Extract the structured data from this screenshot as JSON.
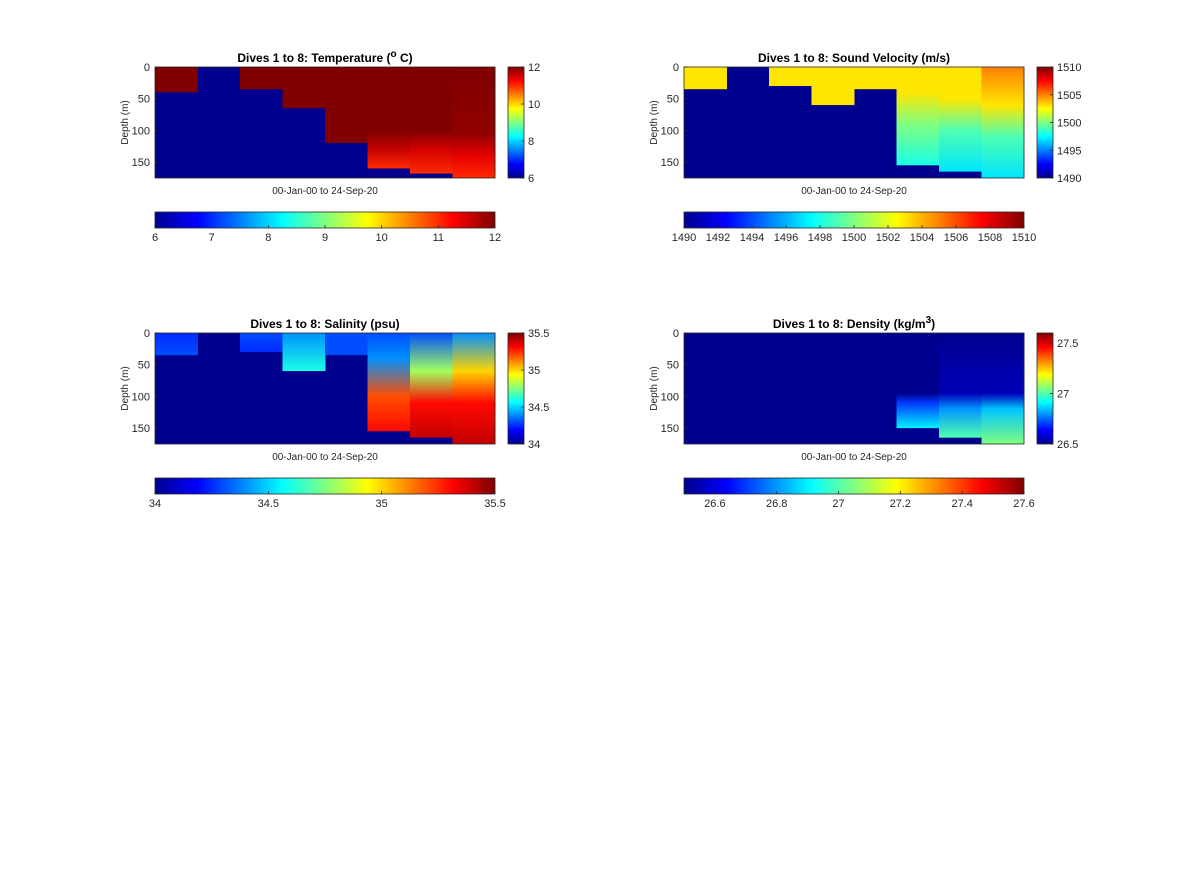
{
  "colormap": [
    "#00008f",
    "#0000ff",
    "#0080ff",
    "#00ffff",
    "#80ff80",
    "#ffff00",
    "#ff8000",
    "#ff0000",
    "#800000"
  ],
  "chart_data": [
    {
      "type": "heatmap",
      "title_main": "Dives 1 to 8: Temperature (",
      "title_sup": "o",
      "title_tail": " C)",
      "xlabel": "00-Jan-00 to 24-Sep-20",
      "ylabel": "Depth (m)",
      "ylim": [
        0,
        175
      ],
      "y_ticks": [
        "0",
        "50",
        "100",
        "150"
      ],
      "clim": [
        6,
        12
      ],
      "side_ticks": [
        "12",
        "10",
        "8",
        "6"
      ],
      "bottom_ticks": [
        "6",
        "7",
        "8",
        "9",
        "10",
        "11",
        "12"
      ],
      "columns": [
        {
          "depth": 40,
          "profile": [
            [
              0,
              12
            ],
            [
              40,
              12
            ]
          ]
        },
        {
          "depth": 0,
          "profile": []
        },
        {
          "depth": 35,
          "profile": [
            [
              0,
              12
            ],
            [
              35,
              12
            ]
          ]
        },
        {
          "depth": 65,
          "profile": [
            [
              0,
              12
            ],
            [
              65,
              12
            ]
          ]
        },
        {
          "depth": 120,
          "profile": [
            [
              0,
              12
            ],
            [
              120,
              12
            ]
          ]
        },
        {
          "depth": 160,
          "profile": [
            [
              0,
              12
            ],
            [
              100,
              12
            ],
            [
              130,
              11.6
            ],
            [
              160,
              11
            ]
          ]
        },
        {
          "depth": 168,
          "profile": [
            [
              0,
              12
            ],
            [
              100,
              12
            ],
            [
              130,
              11.5
            ],
            [
              168,
              11
            ]
          ]
        },
        {
          "depth": 175,
          "profile": [
            [
              0,
              12
            ],
            [
              105,
              11.9
            ],
            [
              140,
              11.4
            ],
            [
              175,
              11
            ]
          ]
        }
      ]
    },
    {
      "type": "heatmap",
      "title_main": "Dives 1 to 8: Sound Velocity (m/s)",
      "title_sup": "",
      "title_tail": "",
      "xlabel": "00-Jan-00 to 24-Sep-20",
      "ylabel": "Depth (m)",
      "ylim": [
        0,
        175
      ],
      "y_ticks": [
        "0",
        "50",
        "100",
        "150"
      ],
      "clim": [
        1490,
        1510
      ],
      "side_ticks": [
        "1510",
        "1505",
        "1500",
        "1495",
        "1490"
      ],
      "bottom_ticks": [
        "1490",
        "1492",
        "1494",
        "1496",
        "1498",
        "1500",
        "1502",
        "1504",
        "1506",
        "1508",
        "1510"
      ],
      "columns": [
        {
          "depth": 35,
          "profile": [
            [
              0,
              1503
            ],
            [
              35,
              1503
            ]
          ]
        },
        {
          "depth": 0,
          "profile": []
        },
        {
          "depth": 30,
          "profile": [
            [
              0,
              1503
            ],
            [
              30,
              1503
            ]
          ]
        },
        {
          "depth": 60,
          "profile": [
            [
              0,
              1503
            ],
            [
              60,
              1503
            ]
          ]
        },
        {
          "depth": 35,
          "profile": [
            [
              0,
              1503
            ],
            [
              35,
              1503
            ]
          ]
        },
        {
          "depth": 155,
          "profile": [
            [
              0,
              1503
            ],
            [
              40,
              1503
            ],
            [
              90,
              1500
            ],
            [
              155,
              1498
            ]
          ]
        },
        {
          "depth": 165,
          "profile": [
            [
              0,
              1503
            ],
            [
              50,
              1503
            ],
            [
              100,
              1499
            ],
            [
              165,
              1497
            ]
          ]
        },
        {
          "depth": 175,
          "profile": [
            [
              0,
              1505
            ],
            [
              60,
              1503
            ],
            [
              110,
              1499
            ],
            [
              175,
              1497
            ]
          ]
        }
      ]
    },
    {
      "type": "heatmap",
      "title_main": "Dives 1 to 8: Salinity (psu)",
      "title_sup": "",
      "title_tail": "",
      "xlabel": "00-Jan-00 to 24-Sep-20",
      "ylabel": "Depth (m)",
      "ylim": [
        0,
        175
      ],
      "y_ticks": [
        "0",
        "50",
        "100",
        "150"
      ],
      "clim": [
        34,
        35.5
      ],
      "side_ticks": [
        "35.5",
        "35",
        "34.5",
        "34"
      ],
      "bottom_ticks": [
        "34",
        "34.5",
        "35",
        "35.5"
      ],
      "columns": [
        {
          "depth": 35,
          "profile": [
            [
              0,
              34.25
            ],
            [
              35,
              34.3
            ]
          ]
        },
        {
          "depth": 0,
          "profile": []
        },
        {
          "depth": 30,
          "profile": [
            [
              0,
              34.3
            ],
            [
              30,
              34.25
            ]
          ]
        },
        {
          "depth": 60,
          "profile": [
            [
              0,
              34.4
            ],
            [
              60,
              34.6
            ]
          ]
        },
        {
          "depth": 35,
          "profile": [
            [
              0,
              34.3
            ],
            [
              35,
              34.3
            ]
          ]
        },
        {
          "depth": 155,
          "profile": [
            [
              0,
              34.3
            ],
            [
              40,
              34.4
            ],
            [
              100,
              35.2
            ],
            [
              155,
              35.3
            ]
          ]
        },
        {
          "depth": 165,
          "profile": [
            [
              0,
              34.3
            ],
            [
              60,
              34.8
            ],
            [
              110,
              35.3
            ],
            [
              165,
              35.4
            ]
          ]
        },
        {
          "depth": 175,
          "profile": [
            [
              0,
              34.4
            ],
            [
              60,
              35
            ],
            [
              110,
              35.3
            ],
            [
              175,
              35.4
            ]
          ]
        }
      ]
    },
    {
      "type": "heatmap",
      "title_main": "Dives 1 to 8: Density (kg/m",
      "title_sup": "3",
      "title_tail": ")",
      "xlabel": "00-Jan-00 to 24-Sep-20",
      "ylabel": "Depth (m)",
      "ylim": [
        0,
        175
      ],
      "y_ticks": [
        "0",
        "50",
        "100",
        "150"
      ],
      "clim": [
        26.5,
        27.6
      ],
      "side_ticks": [
        "27.5",
        "27",
        "26.5"
      ],
      "bottom_ticks": [
        "26.6",
        "26.8",
        "27",
        "27.2",
        "27.4",
        "27.6"
      ],
      "columns": [
        {
          "depth": 0,
          "profile": []
        },
        {
          "depth": 0,
          "profile": []
        },
        {
          "depth": 0,
          "profile": []
        },
        {
          "depth": 0,
          "profile": []
        },
        {
          "depth": 0,
          "profile": []
        },
        {
          "depth": 150,
          "profile": [
            [
              0,
              26.5
            ],
            [
              95,
              26.5
            ],
            [
              110,
              26.7
            ],
            [
              150,
              26.9
            ]
          ]
        },
        {
          "depth": 165,
          "profile": [
            [
              0,
              26.5
            ],
            [
              95,
              26.55
            ],
            [
              120,
              26.8
            ],
            [
              165,
              27
            ]
          ]
        },
        {
          "depth": 175,
          "profile": [
            [
              0,
              26.5
            ],
            [
              95,
              26.55
            ],
            [
              120,
              26.85
            ],
            [
              175,
              27.05
            ]
          ]
        }
      ]
    }
  ]
}
